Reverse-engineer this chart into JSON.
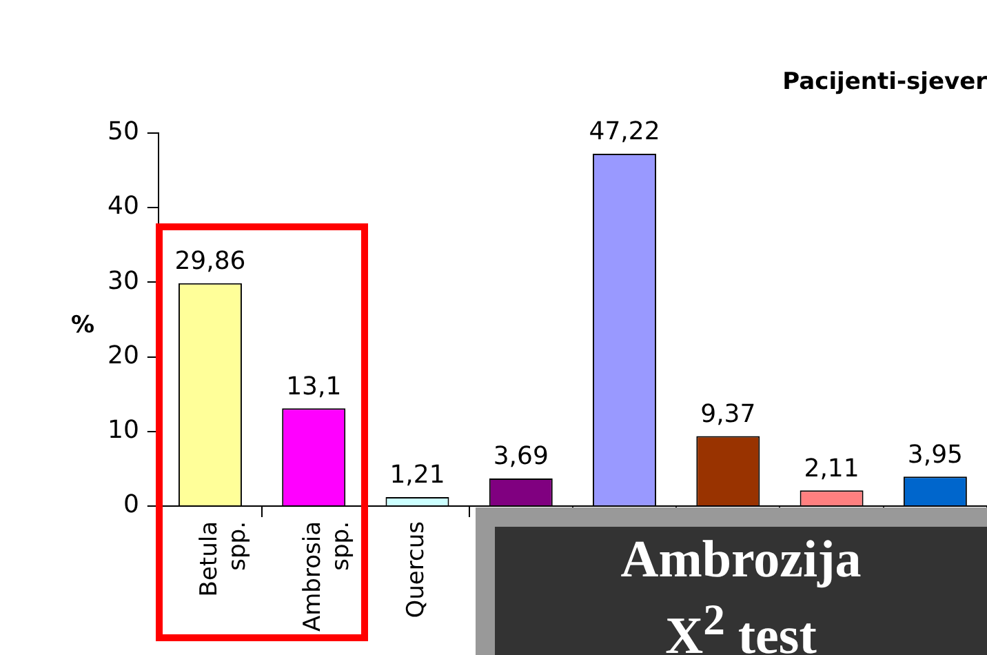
{
  "chart_data": {
    "type": "bar",
    "title": "Pacijenti-sjever",
    "ylabel": "%",
    "categories": [
      "Betula spp.",
      "Ambrosia spp.",
      "Quercus",
      null,
      null,
      null,
      null,
      null
    ],
    "values": [
      29.86,
      13.1,
      1.21,
      3.69,
      47.22,
      9.37,
      2.11,
      3.95
    ],
    "colors": [
      "#ffff99",
      "#ff00ff",
      "#ccffff",
      "#800080",
      "#9999ff",
      "#993300",
      "#ff8080",
      "#0066cc"
    ],
    "value_labels": [
      "29,86",
      "13,1",
      "1,21",
      "3,69",
      "47,22",
      "9,37",
      "2,11",
      "3,95"
    ],
    "ylim": [
      0,
      50
    ],
    "yticks": [
      0,
      10,
      20,
      30,
      40,
      50
    ],
    "grid": false,
    "legend": false,
    "annotations": [
      "Ambrozija",
      "X$^{2}$ test"
    ]
  }
}
